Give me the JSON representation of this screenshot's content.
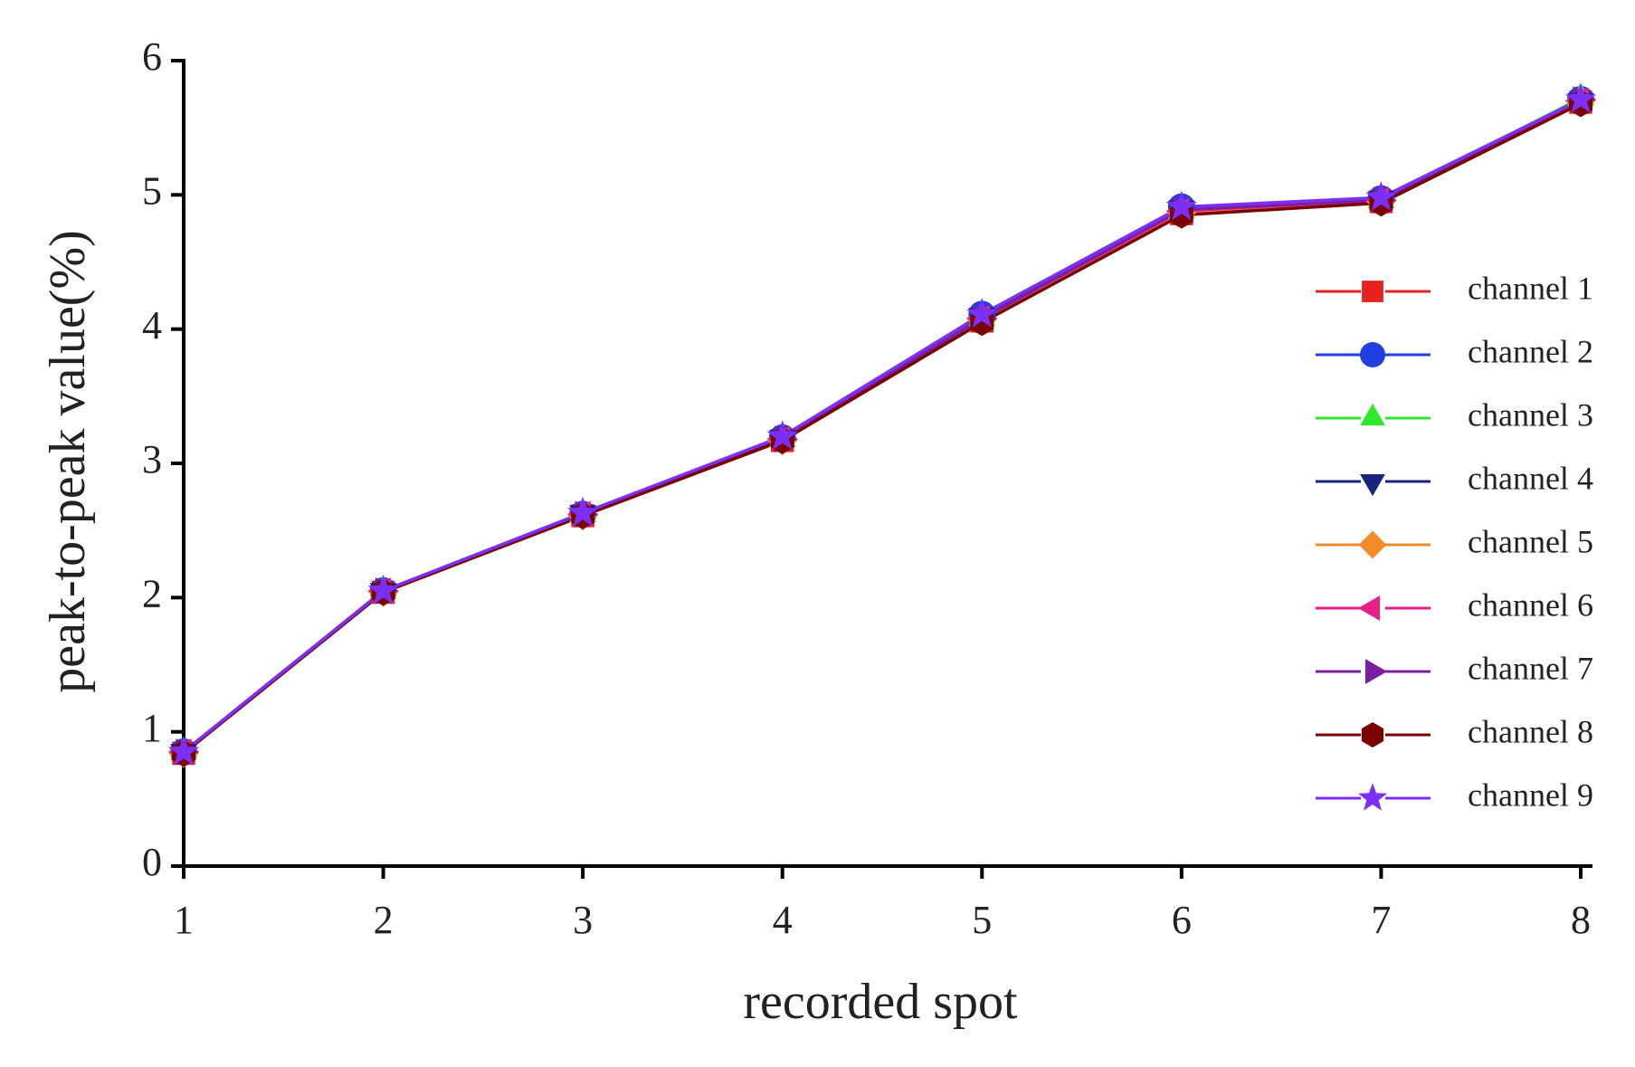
{
  "chart_data": {
    "type": "line",
    "x_label": "recorded spot",
    "y_label": "peak-to-peak value(%)",
    "x": [
      1,
      2,
      3,
      4,
      5,
      6,
      7,
      8
    ],
    "xlim": [
      1,
      8
    ],
    "xticks": [
      1,
      2,
      3,
      4,
      5,
      6,
      7,
      8
    ],
    "ylim": [
      0,
      6
    ],
    "yticks": [
      0,
      1,
      2,
      3,
      4,
      5,
      6
    ],
    "grid": false,
    "legend": "right",
    "series": [
      {
        "name": "channel 1",
        "color": "#e8201e",
        "marker": "square",
        "values": [
          0.84,
          2.04,
          2.61,
          3.17,
          4.06,
          4.86,
          4.95,
          5.69
        ]
      },
      {
        "name": "channel 2",
        "color": "#1f3fe0",
        "marker": "circle",
        "values": [
          0.85,
          2.05,
          2.62,
          3.19,
          4.11,
          4.91,
          4.97,
          5.71
        ]
      },
      {
        "name": "channel 3",
        "color": "#2ee82e",
        "marker": "triangle-up",
        "values": [
          0.85,
          2.05,
          2.62,
          3.18,
          4.08,
          4.88,
          4.96,
          5.72
        ]
      },
      {
        "name": "channel 4",
        "color": "#1a237e",
        "marker": "triangle-down",
        "values": [
          0.85,
          2.05,
          2.63,
          3.19,
          4.1,
          4.9,
          4.97,
          5.7
        ]
      },
      {
        "name": "channel 5",
        "color": "#f28c28",
        "marker": "diamond",
        "values": [
          0.84,
          2.04,
          2.61,
          3.17,
          4.07,
          4.87,
          4.95,
          5.7
        ]
      },
      {
        "name": "channel 6",
        "color": "#e8218a",
        "marker": "triangle-left",
        "values": [
          0.85,
          2.05,
          2.62,
          3.18,
          4.08,
          4.88,
          4.96,
          5.7
        ]
      },
      {
        "name": "channel 7",
        "color": "#7b1fa2",
        "marker": "triangle-right",
        "values": [
          0.85,
          2.05,
          2.62,
          3.18,
          4.08,
          4.89,
          4.96,
          5.71
        ]
      },
      {
        "name": "channel 8",
        "color": "#7b0000",
        "marker": "hexagon",
        "values": [
          0.84,
          2.04,
          2.61,
          3.17,
          4.05,
          4.85,
          4.94,
          5.68
        ]
      },
      {
        "name": "channel 9",
        "color": "#7b2ff7",
        "marker": "star",
        "values": [
          0.85,
          2.05,
          2.63,
          3.2,
          4.11,
          4.91,
          4.98,
          5.71
        ]
      }
    ]
  }
}
